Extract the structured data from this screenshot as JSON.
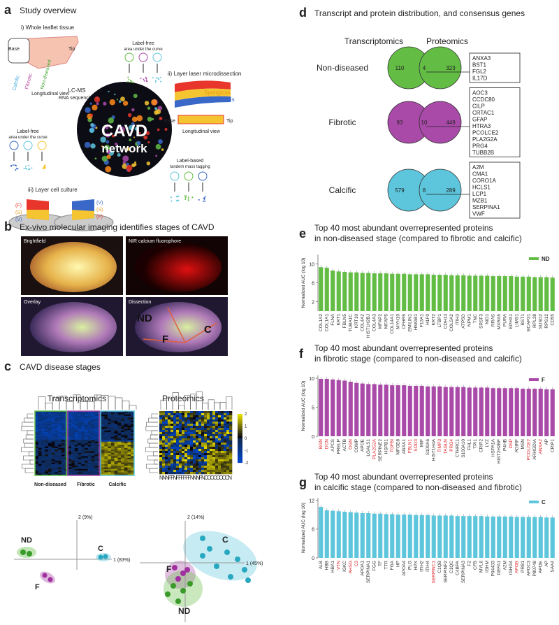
{
  "panel_a": {
    "label": "a",
    "title": "Study overview",
    "whole_tissue": {
      "heading": "i) Whole leaflet tissue",
      "base": "Base",
      "tip": "Tip",
      "view": "Longitudinal view",
      "regions": [
        "Calcific",
        "Fibrotic",
        "Non-diseased"
      ]
    },
    "label_free": {
      "name": "Label-free",
      "note": "area under the curve"
    },
    "lcms": "LC-MS",
    "rna": "RNA sequencing",
    "microdissection": {
      "heading": "ii) Layer laser microdissection",
      "layers": [
        "Fibrosa",
        "Spongiosa",
        "Ventricularis"
      ],
      "base": "Base",
      "tip": "Tip",
      "view": "Longitudinal view"
    },
    "label_based": {
      "name": "Label-based",
      "note": "tandem mass tagging"
    },
    "culture": {
      "heading": "iii) Layer cell culture",
      "layers": [
        "(F)",
        "(S)",
        "(V)"
      ]
    },
    "network": [
      "CAVD",
      "network"
    ]
  },
  "panel_b": {
    "label": "b",
    "title": "Ex-vivo molecular imaging identifies stages of CAVD",
    "images": [
      "Brightfield",
      "NIR calcium fluorophore",
      "Overlay",
      "Dissection"
    ],
    "regions": [
      "ND",
      "F",
      "C"
    ]
  },
  "panel_c": {
    "label": "c",
    "title": "CAVD disease stages",
    "omics": [
      "Transcriptomics",
      "Proteomics"
    ],
    "groups": [
      "Non-diseased",
      "Fibrotic",
      "Calcific"
    ],
    "colorbar_ticks": [
      2,
      1,
      0,
      -1,
      -2
    ],
    "samples": "NNNFFNFFFFFFNNNFNCCCCCCCCN",
    "pca_transcriptomics": {
      "y_axis": "2 (9%)",
      "x_axis": "1 (83%)",
      "clusters": [
        "ND",
        "C",
        "F"
      ]
    },
    "pca_proteomics": {
      "y_axis": "2 (14%)",
      "x_axis": "1 (45%)",
      "clusters": [
        "C",
        "F",
        "ND"
      ]
    }
  },
  "panel_d": {
    "label": "d",
    "title": "Transcript and protein distribution, and consensus genes",
    "set_labels": [
      "Transcriptomics",
      "Proteomics"
    ],
    "rows": [
      {
        "name": "Non-diseased",
        "color": "#63bd45",
        "left": 110,
        "overlap": 4,
        "right": 323,
        "genes": [
          "ANXA3",
          "BST1",
          "FGL2",
          "IL17D"
        ]
      },
      {
        "name": "Fibrotic",
        "color": "#a94aa8",
        "left": 93,
        "overlap": 10,
        "right": 449,
        "genes": [
          "AOC3",
          "CCDC80",
          "CILP",
          "CRTAC1",
          "GFAP",
          "HTRA3",
          "PCOLCE2",
          "PLA2G2A",
          "PRG4",
          "TUBB2B"
        ]
      },
      {
        "name": "Calcific",
        "color": "#5ec6dc",
        "left": 579,
        "overlap": 8,
        "right": 289,
        "genes": [
          "A2M",
          "CMA1",
          "CORO1A",
          "HCLS1",
          "LCP1",
          "MZB1",
          "SERPINA1",
          "VWF"
        ]
      }
    ]
  },
  "chart_data": [
    {
      "type": "bar",
      "label": "e",
      "title": "Top 40 most abundant overrepresented proteins",
      "subtitle": "in non-diseased stage (compared to fibrotic and calcific)",
      "y_label": "Normalized AUC (log 10)",
      "categories": [
        "COL1A2",
        "COL1A1",
        "FLNA",
        "KRT1",
        "FBLN5",
        "TUBA1C",
        "KRT10",
        "COL4A2",
        "HIST1H2BJ",
        "COL4A3",
        "MFAP2",
        "MFAP5",
        "COL14A1",
        "MYH10",
        "CFHR5",
        "EMILIN1",
        "HMGB1",
        "F13A1",
        "H1F0",
        "KRT2",
        "LTBP1",
        "CDH13",
        "COL5A2",
        "ITIH3",
        "ATP5O",
        "NPM1",
        "TNC",
        "SRSF3",
        "NID1",
        "RRAS",
        "MXRA5",
        "PURA",
        "EPHX1",
        "LIMS1",
        "BST1",
        "BCAP31",
        "RPL38",
        "SUSD2",
        "RPS12",
        "CD55"
      ],
      "series": [
        {
          "name": "ND",
          "color": "#63bd45",
          "values": [
            9.3,
            9.2,
            8.6,
            8.4,
            8.3,
            8.2,
            8.2,
            8.1,
            8.1,
            8.0,
            8.0,
            8.0,
            7.9,
            7.9,
            7.9,
            7.8,
            7.8,
            7.8,
            7.8,
            7.7,
            7.7,
            7.7,
            7.6,
            7.6,
            7.6,
            7.5,
            7.5,
            7.5,
            7.5,
            7.4,
            7.4,
            7.4,
            7.4,
            7.3,
            7.3,
            7.3,
            7.2,
            7.2,
            7.2,
            7.1
          ]
        }
      ],
      "ylim": [
        0,
        12
      ],
      "yticks": [
        2,
        6,
        10
      ],
      "legend": "upper right",
      "highlighted": [],
      "highlight_color": "#e0262b"
    },
    {
      "type": "bar",
      "label": "f",
      "title": "Top 40 most abundant overrepresented proteins",
      "subtitle": "in fibrotic stage (compared to non-diseased and calcific)",
      "y_label": "Normalized AUC (log 10)",
      "categories": [
        "BGN",
        "DCN",
        "APCS",
        "PRELP",
        "ACTB",
        "OGN",
        "COMP",
        "APOE",
        "LGALS1",
        "PLA2G2A",
        "SERPINE2",
        "HSPB1",
        "TGFBI",
        "MFGE8",
        "ANXA1",
        "FBLN1",
        "SOD3",
        "MIF",
        "S100A6",
        "HIST1H4A",
        "TIMP3",
        "TAGLN",
        "PRG4",
        "CTHRC1",
        "S100A10",
        "FHL1",
        "TPI1",
        "CRIP2",
        "LYZ",
        "HSPA1A",
        "HIST2H2BF",
        "P4HB",
        "DSP",
        "ADIRF",
        "MSN",
        "PCOLCE2",
        "ARHGDIA",
        "ANXA2",
        "AP",
        "CRIP1"
      ],
      "series": [
        {
          "name": "F",
          "color": "#a94aa8",
          "values": [
            9.9,
            9.9,
            9.8,
            9.7,
            9.6,
            9.4,
            9.2,
            9.1,
            9.0,
            9.0,
            8.9,
            8.9,
            8.8,
            8.8,
            8.8,
            8.7,
            8.7,
            8.7,
            8.6,
            8.6,
            8.6,
            8.5,
            8.5,
            8.5,
            8.5,
            8.4,
            8.4,
            8.4,
            8.4,
            8.3,
            8.3,
            8.3,
            8.3,
            8.3,
            8.2,
            8.2,
            8.2,
            8.2,
            8.1,
            8.1
          ]
        }
      ],
      "ylim": [
        0,
        10.5
      ],
      "yticks": [
        0,
        5,
        10
      ],
      "legend": "upper right",
      "highlighted": [
        "BGN",
        "DCN",
        "OGN",
        "PLA2G2A",
        "TGFBI",
        "FBLN1",
        "SOD3",
        "TIMP3",
        "TAGLN",
        "PRG4",
        "DSP",
        "PCOLCE2",
        "ANXA2"
      ],
      "highlight_color": "#e0262b"
    },
    {
      "type": "bar",
      "label": "g",
      "title": "Top 40 most abundant overrepresented proteins",
      "subtitle": "in calcific stage (compared to non-diseased and fibrotic)",
      "y_label": "Normalized AUC (log 10)",
      "categories": [
        "ALB",
        "HBB",
        "HBA1",
        "VTN",
        "IGKC",
        "AHSG",
        "C3",
        "APOA1",
        "SERPINA1",
        "FGG",
        "TF",
        "TTR",
        "FGA",
        "HP",
        "APOA4",
        "PLG",
        "HPX",
        "ITIH2",
        "ITIH4",
        "SERPINC1",
        "C1QB",
        "SERPINF2",
        "C1QC",
        "C4BPA",
        "SERPINA3",
        "F2",
        "CFB",
        "MYL6",
        "IGHM",
        "P04433",
        "DEFA1",
        "A2M",
        "IGHG4",
        "APOB",
        "PRB1",
        "APOC3",
        "P80748",
        "APOE",
        "AP",
        "SAA4"
      ],
      "series": [
        {
          "name": "C",
          "color": "#5ec6dc",
          "values": [
            10.6,
            9.9,
            9.8,
            9.7,
            9.6,
            9.5,
            9.4,
            9.3,
            9.3,
            9.2,
            9.2,
            9.1,
            9.1,
            9.0,
            9.0,
            9.0,
            8.9,
            8.9,
            8.9,
            8.8,
            8.8,
            8.8,
            8.8,
            8.7,
            8.7,
            8.7,
            8.7,
            8.7,
            8.6,
            8.6,
            8.6,
            8.6,
            8.6,
            8.5,
            8.5,
            8.5,
            8.5,
            8.5,
            8.4,
            8.4
          ]
        }
      ],
      "ylim": [
        0,
        12.5
      ],
      "yticks": [
        0,
        6,
        12
      ],
      "legend": "upper right",
      "highlighted": [
        "VTN",
        "AHSG",
        "C3",
        "SERPINC1",
        "APOB"
      ],
      "highlight_color": "#e0262b"
    }
  ]
}
